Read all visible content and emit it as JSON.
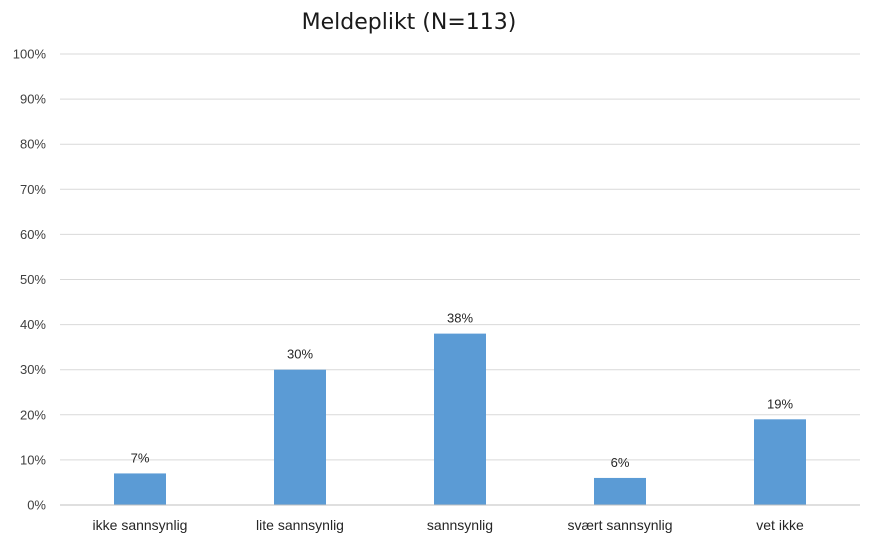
{
  "chart_data": {
    "type": "bar",
    "title": "Meldeplikt (N=113)",
    "categories": [
      "ikke sannsynlig",
      "lite sannsynlig",
      "sannsynlig",
      "svært sannsynlig",
      "vet ikke"
    ],
    "values": [
      7,
      30,
      38,
      6,
      19
    ],
    "data_labels": [
      "7%",
      "30%",
      "38%",
      "6%",
      "19%"
    ],
    "ylim": [
      0,
      100
    ],
    "yticks": [
      0,
      10,
      20,
      30,
      40,
      50,
      60,
      70,
      80,
      90,
      100
    ],
    "ytick_labels": [
      "0%",
      "10%",
      "20%",
      "30%",
      "40%",
      "50%",
      "60%",
      "70%",
      "80%",
      "90%",
      "100%"
    ],
    "xlabel": "",
    "ylabel": "",
    "grid": true,
    "legend": "none",
    "bar_color": "#5b9bd5"
  }
}
